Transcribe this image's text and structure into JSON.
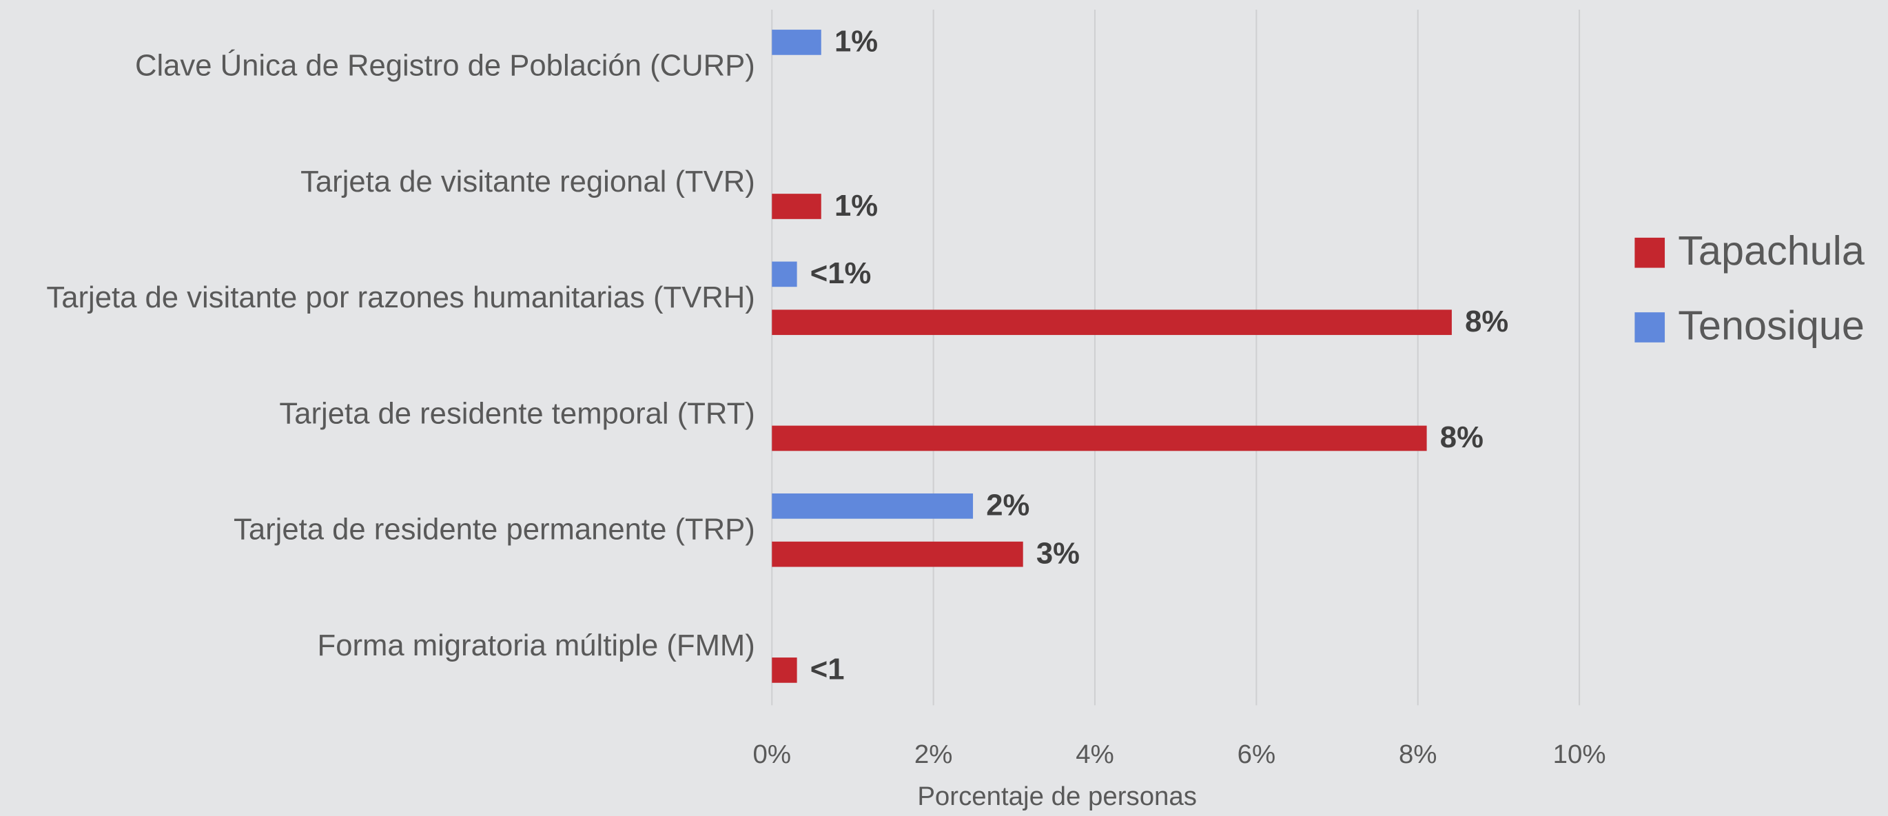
{
  "chart_data": {
    "type": "bar",
    "orientation": "horizontal",
    "categories": [
      "Clave Única de Registro de Población (CURP)",
      "Tarjeta de visitante regional (TVR)",
      "Tarjeta de visitante por razones humanitarias (TVRH)",
      "Tarjeta de residente temporal (TRT)",
      "Tarjeta de residente permanente (TRP)",
      "Forma migratoria múltiple (FMM)"
    ],
    "series": [
      {
        "name": "Tapachula",
        "color": "#c4262e",
        "values": [
          null,
          0.61,
          8.42,
          8.11,
          3.11,
          0.31
        ],
        "value_labels": [
          null,
          "1%",
          "8%",
          "8%",
          "3%",
          "<1"
        ]
      },
      {
        "name": "Tenosique",
        "color": "#6088dc",
        "values": [
          0.61,
          null,
          0.31,
          null,
          2.49,
          null
        ],
        "value_labels": [
          "1%",
          null,
          "<1%",
          null,
          "2%",
          null
        ]
      }
    ],
    "xlim": [
      0,
      10
    ],
    "xticks": [
      {
        "value": 0,
        "label": "0%"
      },
      {
        "value": 2,
        "label": "2%"
      },
      {
        "value": 4,
        "label": "4%"
      },
      {
        "value": 6,
        "label": "6%"
      },
      {
        "value": 8,
        "label": "8%"
      },
      {
        "value": 10,
        "label": "10%"
      }
    ],
    "x_label": "Porcentaje de personas",
    "grid": true,
    "legend": "right"
  }
}
